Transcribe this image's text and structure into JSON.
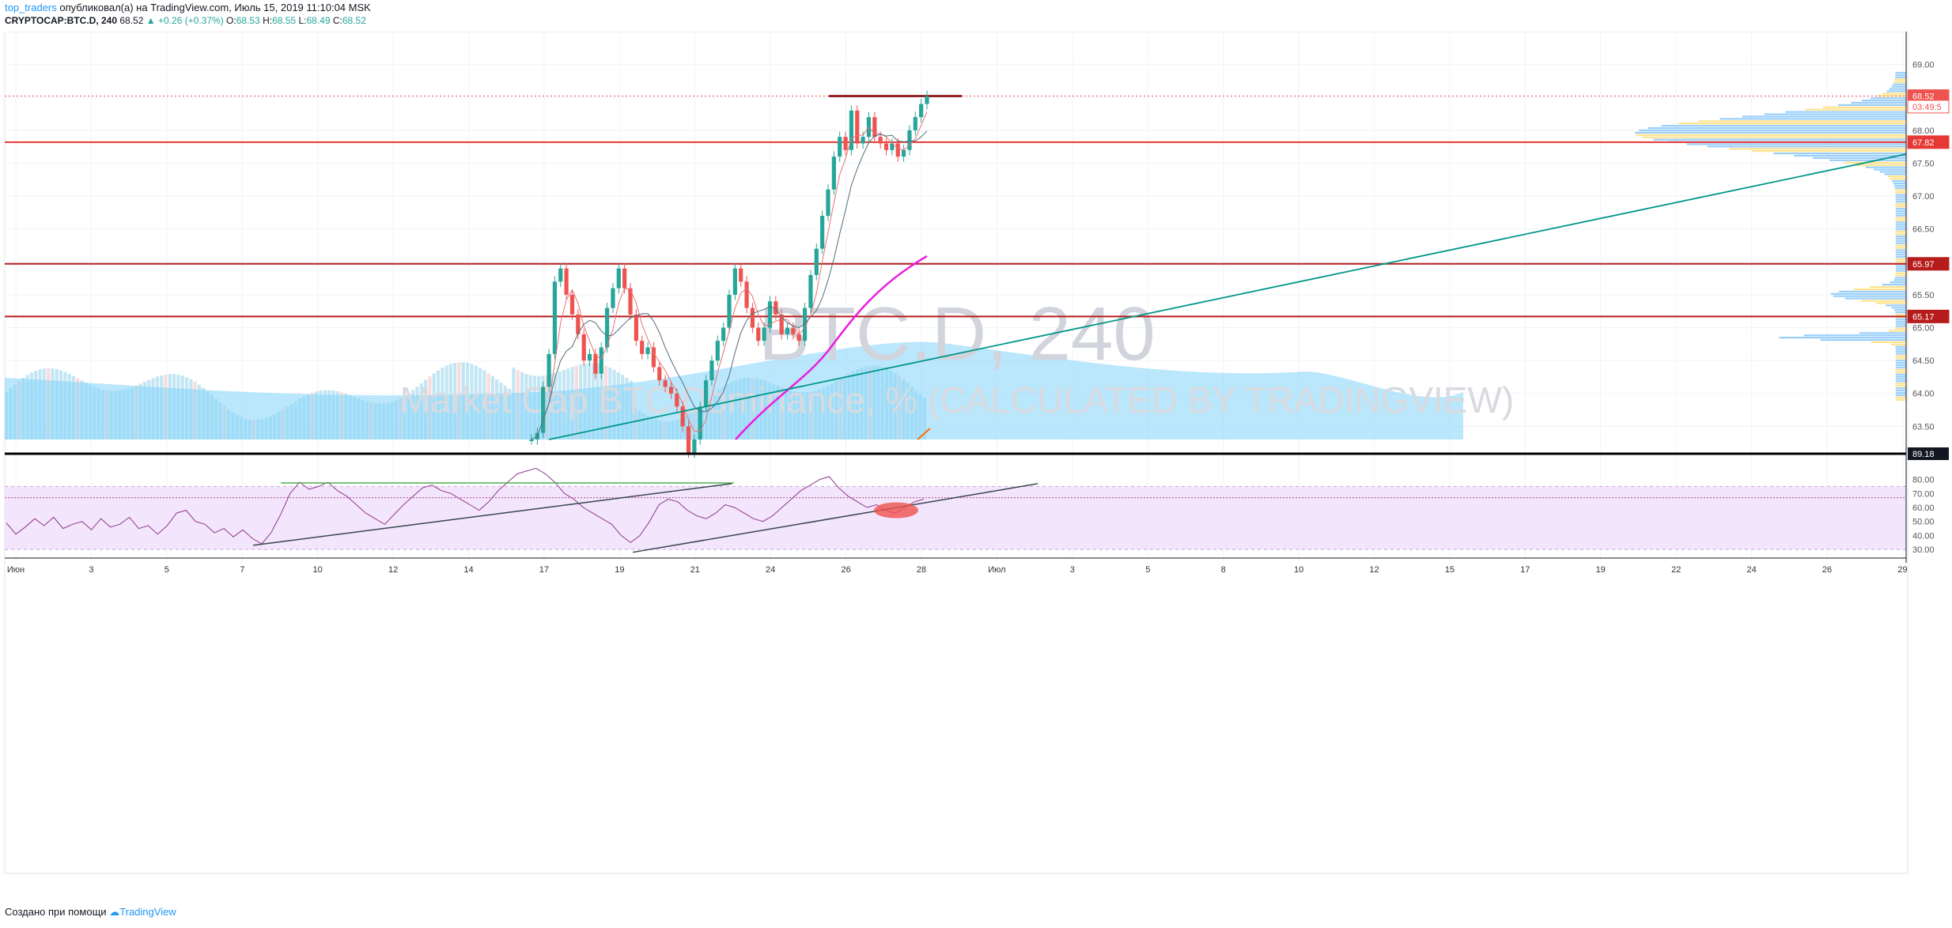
{
  "header": {
    "author": "top_traders",
    "published_text": "опубликовал(а) на TradingView.com, Июль 15, 2019 11:10:04 MSK",
    "symbol": "CRYPTOCAP:BTC.D, 240",
    "last": "68.52",
    "change": "▲ +0.26 (+0.37%)",
    "o_label": "O:",
    "o": "68.53",
    "h_label": "H:",
    "h": "68.55",
    "l_label": "L:",
    "l": "68.49",
    "c_label": "C:",
    "c": "68.52"
  },
  "footer": {
    "made_with": "Создано при помощи",
    "brand": "TradingView"
  },
  "chart_data": {
    "type": "line",
    "watermark_title": "BTC.D, 240",
    "watermark_subtitle": "Market Cap BTC Dominance, % (CALCULATED BY TRADINGVIEW)",
    "price_axis": {
      "ticks": [
        69.0,
        68.5,
        68.0,
        67.5,
        67.0,
        66.5,
        66.0,
        65.5,
        65.0,
        64.5,
        64.0,
        63.5
      ],
      "ylim": [
        63.3,
        69.5
      ]
    },
    "price_labels": [
      {
        "value": 68.52,
        "text": "68.52",
        "color": "#ef5350"
      },
      {
        "value": 68.36,
        "text": "03:49:5",
        "color": "#ef5350",
        "outline": true
      },
      {
        "value": 67.82,
        "text": "67.82",
        "color": "#e53935"
      },
      {
        "value": 65.97,
        "text": "65.97",
        "color": "#b71c1c"
      },
      {
        "value": 65.17,
        "text": "65.17",
        "color": "#b71c1c"
      }
    ],
    "horizontal_levels": [
      {
        "value": 67.82,
        "color": "#e53935",
        "style": "solid"
      },
      {
        "value": 65.97,
        "color": "#b71c1c",
        "style": "solid"
      },
      {
        "value": 65.17,
        "color": "#b71c1c",
        "style": "solid"
      },
      {
        "value": 68.52,
        "color": "#ef5350",
        "style": "dotted"
      }
    ],
    "x_axis_labels": [
      "Июн",
      "3",
      "5",
      "7",
      "10",
      "12",
      "14",
      "17",
      "19",
      "21",
      "24",
      "26",
      "28",
      "Июл",
      "3",
      "5",
      "8",
      "10",
      "12",
      "15",
      "17",
      "19",
      "22",
      "24",
      "26",
      "29"
    ],
    "close_series": [
      63.3,
      63.4,
      64.1,
      64.6,
      65.7,
      65.9,
      65.5,
      65.2,
      64.9,
      64.5,
      64.6,
      64.3,
      64.7,
      65.3,
      65.6,
      65.9,
      65.6,
      65.2,
      64.8,
      64.6,
      64.7,
      64.4,
      64.2,
      64.1,
      64.0,
      63.8,
      63.5,
      63.1,
      63.3,
      63.8,
      64.2,
      64.5,
      64.8,
      65.0,
      65.5,
      65.9,
      65.7,
      65.3,
      65.0,
      64.8,
      65.0,
      65.4,
      65.2,
      64.9,
      65.0,
      64.9,
      64.8,
      65.3,
      65.8,
      66.2,
      66.7,
      67.1,
      67.6,
      67.9,
      67.7,
      68.3,
      67.8,
      67.9,
      68.2,
      67.9,
      67.8,
      67.7,
      67.8,
      67.6,
      67.7,
      68.0,
      68.2,
      68.4,
      68.52
    ],
    "rsi": {
      "ticks": [
        80,
        70,
        60,
        50,
        40,
        30
      ],
      "ylim": [
        25,
        95
      ],
      "band": [
        30,
        75
      ],
      "level_label": "89.18",
      "values": [
        49,
        41,
        46,
        52,
        47,
        53,
        45,
        48,
        50,
        44,
        52,
        46,
        48,
        53,
        45,
        47,
        41,
        47,
        56,
        58,
        50,
        48,
        42,
        45,
        39,
        44,
        38,
        34,
        42,
        55,
        70,
        78,
        73,
        75,
        78,
        72,
        68,
        62,
        56,
        52,
        48,
        55,
        62,
        68,
        74,
        76,
        72,
        70,
        66,
        62,
        58,
        64,
        72,
        78,
        84,
        86,
        88,
        84,
        78,
        70,
        66,
        60,
        56,
        52,
        48,
        40,
        35,
        40,
        50,
        62,
        66,
        64,
        58,
        54,
        52,
        56,
        62,
        60,
        56,
        52,
        50,
        54,
        60,
        66,
        72,
        76,
        80,
        82,
        74,
        68,
        64,
        60,
        62,
        58,
        56,
        60,
        64,
        66
      ]
    }
  }
}
